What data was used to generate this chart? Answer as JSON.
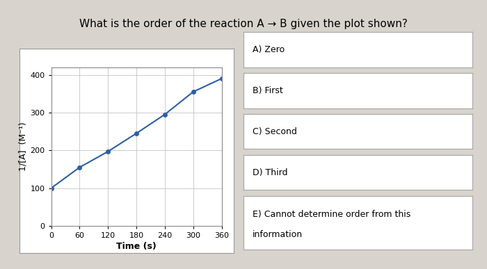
{
  "title": "What is the order of the reaction A → B given the plot shown?",
  "x_data": [
    0,
    60,
    120,
    180,
    240,
    300,
    360
  ],
  "y_data": [
    100,
    155,
    197,
    245,
    295,
    355,
    390
  ],
  "xlabel": "Time (s)",
  "ylabel": "1/[A]  (M⁻¹)",
  "xlim": [
    0,
    360
  ],
  "ylim": [
    0,
    420
  ],
  "xticks": [
    0,
    60,
    120,
    180,
    240,
    300,
    360
  ],
  "yticks": [
    0,
    100,
    200,
    300,
    400
  ],
  "line_color": "#2b5fa5",
  "marker_color": "#2b5fa5",
  "background_color": "#d8d4cd",
  "plot_bg": "#ffffff",
  "plot_border_color": "#aaaaaa",
  "options": [
    "A) Zero",
    "B) First",
    "C) Second",
    "D) Third",
    "E) Cannot determine order from this\ninformation"
  ],
  "title_fontsize": 11,
  "axis_fontsize": 9,
  "tick_fontsize": 8,
  "option_fontsize": 9,
  "red_bar_color": "#cc0000"
}
